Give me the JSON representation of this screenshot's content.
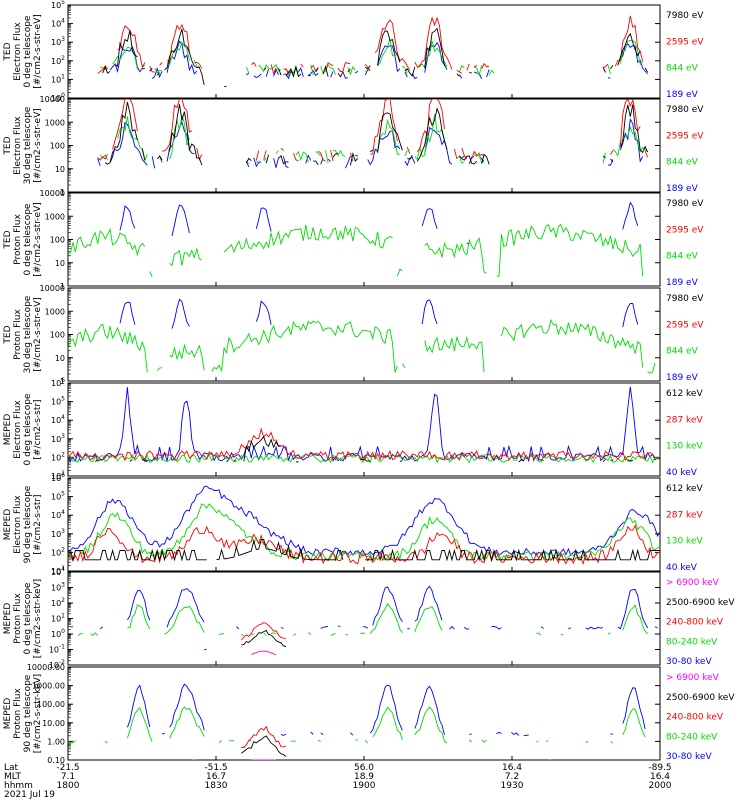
{
  "chart_data": {
    "type": "line",
    "date_label": "2021 Jul 19",
    "x_axis": {
      "row_labels": [
        "Lat",
        "MLT",
        "hhmm"
      ],
      "ticks": [
        {
          "lat": "-21.5",
          "mlt": "7.1",
          "hhmm": "1800"
        },
        {
          "lat": "-51.5",
          "mlt": "16.7",
          "hhmm": "1830"
        },
        {
          "lat": "56.0",
          "mlt": "18.9",
          "hhmm": "1900"
        },
        {
          "lat": "16.4",
          "mlt": "7.2",
          "hhmm": "1930"
        },
        {
          "lat": "-89.5",
          "mlt": "16.4",
          "hhmm": "2000"
        }
      ]
    },
    "colors": {
      "blue": "#0000ff",
      "red": "#ff0000",
      "green": "#00dd00",
      "black": "#000000",
      "magenta": "#ff00ff"
    },
    "panels": [
      {
        "ylabel": [
          "TED",
          "Electron Flux",
          "0 deg telescope",
          "[#/cm2-s-str-eV]"
        ],
        "y_ticks": [
          {
            "v": 0,
            "t": "10^0"
          },
          {
            "v": 1,
            "t": "10^1"
          },
          {
            "v": 2,
            "t": "10^2"
          },
          {
            "v": 3,
            "t": "10^3"
          },
          {
            "v": 4,
            "t": "10^4"
          },
          {
            "v": 5,
            "t": "10^5"
          }
        ],
        "legend": [
          {
            "name": "7980 eV",
            "color": "#000000"
          },
          {
            "name": "2595 eV",
            "color": "#ff0000"
          },
          {
            "name": "844 eV",
            "color": "#00dd00"
          },
          {
            "name": "189 eV",
            "color": "#0000ff"
          }
        ]
      },
      {
        "ylabel": [
          "TED",
          "Electron Flux",
          "30 deg telescope",
          "[#/cm2-s-str-eV]"
        ],
        "y_ticks": [
          {
            "v": 0,
            "t": "1"
          },
          {
            "v": 1,
            "t": "10"
          },
          {
            "v": 2,
            "t": "100"
          },
          {
            "v": 3,
            "t": "1000"
          },
          {
            "v": 4,
            "t": "10000"
          }
        ],
        "legend": [
          {
            "name": "7980 eV",
            "color": "#000000"
          },
          {
            "name": "2595 eV",
            "color": "#ff0000"
          },
          {
            "name": "844 eV",
            "color": "#00dd00"
          },
          {
            "name": "189 eV",
            "color": "#0000ff"
          }
        ]
      },
      {
        "ylabel": [
          "TED",
          "Proton Flux",
          "0 deg telescope",
          "[#/cm2-s-str-eV]"
        ],
        "y_ticks": [
          {
            "v": 0,
            "t": "1"
          },
          {
            "v": 1,
            "t": "10"
          },
          {
            "v": 2,
            "t": "100"
          },
          {
            "v": 3,
            "t": "1000"
          },
          {
            "v": 4,
            "t": "10000"
          }
        ],
        "legend": [
          {
            "name": "7980 eV",
            "color": "#000000"
          },
          {
            "name": "2595 eV",
            "color": "#ff0000"
          },
          {
            "name": "844 eV",
            "color": "#00dd00"
          },
          {
            "name": "189 eV",
            "color": "#0000ff"
          }
        ]
      },
      {
        "ylabel": [
          "TED",
          "Proton Flux",
          "30 deg telescope",
          "[#/cm2-s-str-eV]"
        ],
        "y_ticks": [
          {
            "v": 0,
            "t": "1"
          },
          {
            "v": 1,
            "t": "10"
          },
          {
            "v": 2,
            "t": "100"
          },
          {
            "v": 3,
            "t": "1000"
          },
          {
            "v": 4,
            "t": "10000"
          }
        ],
        "legend": [
          {
            "name": "7980 eV",
            "color": "#000000"
          },
          {
            "name": "2595 eV",
            "color": "#ff0000"
          },
          {
            "name": "844 eV",
            "color": "#00dd00"
          },
          {
            "name": "189 eV",
            "color": "#0000ff"
          }
        ]
      },
      {
        "ylabel": [
          "MEPED",
          "Electron Flux",
          "0 deg telescope",
          "[#/cm2-s-str]"
        ],
        "y_ticks": [
          {
            "v": 1,
            "t": "10^1"
          },
          {
            "v": 2,
            "t": "10^2"
          },
          {
            "v": 3,
            "t": "10^3"
          },
          {
            "v": 4,
            "t": "10^4"
          },
          {
            "v": 5,
            "t": "10^5"
          },
          {
            "v": 6,
            "t": "10^6"
          }
        ],
        "legend": [
          {
            "name": "612 keV",
            "color": "#000000"
          },
          {
            "name": "287 keV",
            "color": "#ff0000"
          },
          {
            "name": "130 keV",
            "color": "#00dd00"
          },
          {
            "name": "40 keV",
            "color": "#0000ff"
          }
        ]
      },
      {
        "ylabel": [
          "MEPED",
          "Electron Flux",
          "90 deg telescope",
          "[#/cm2-s-str]"
        ],
        "y_ticks": [
          {
            "v": 1,
            "t": "10^1"
          },
          {
            "v": 2,
            "t": "10^2"
          },
          {
            "v": 3,
            "t": "10^3"
          },
          {
            "v": 4,
            "t": "10^4"
          },
          {
            "v": 5,
            "t": "10^5"
          },
          {
            "v": 6,
            "t": "10^6"
          }
        ],
        "legend": [
          {
            "name": "612 keV",
            "color": "#000000"
          },
          {
            "name": "287 keV",
            "color": "#ff0000"
          },
          {
            "name": "130 keV",
            "color": "#00dd00"
          },
          {
            "name": "40 keV",
            "color": "#0000ff"
          }
        ]
      },
      {
        "ylabel": [
          "MEPED",
          "Proton Flux",
          "0 deg telescope",
          "[#/cm2-s-str-keV]"
        ],
        "y_ticks": [
          {
            "v": -2,
            "t": "10^-2"
          },
          {
            "v": -1,
            "t": "10^-1"
          },
          {
            "v": 0,
            "t": "10^0"
          },
          {
            "v": 1,
            "t": "10^1"
          },
          {
            "v": 2,
            "t": "10^2"
          },
          {
            "v": 3,
            "t": "10^3"
          },
          {
            "v": 4,
            "t": "10^4"
          }
        ],
        "legend": [
          {
            "name": "> 6900 keV",
            "color": "#ff00ff"
          },
          {
            "name": "2500-6900 keV",
            "color": "#000000"
          },
          {
            "name": "240-800 keV",
            "color": "#ff0000"
          },
          {
            "name": "80-240 keV",
            "color": "#00dd00"
          },
          {
            "name": "30-80 keV",
            "color": "#0000ff"
          }
        ]
      },
      {
        "ylabel": [
          "MEPED",
          "Proton Flux",
          "90 deg telescope",
          "[#/cm2-s-str-keV]"
        ],
        "y_ticks": [
          {
            "v": -1,
            "t": "0.10"
          },
          {
            "v": 0,
            "t": "1.00"
          },
          {
            "v": 1,
            "t": "10.00"
          },
          {
            "v": 2,
            "t": "100.00"
          },
          {
            "v": 3,
            "t": "1000.00"
          },
          {
            "v": 4,
            "t": "10000.00"
          }
        ],
        "legend": [
          {
            "name": "> 6900 keV",
            "color": "#ff00ff"
          },
          {
            "name": "2500-6900 keV",
            "color": "#000000"
          },
          {
            "name": "240-800 keV",
            "color": "#ff0000"
          },
          {
            "name": "80-240 keV",
            "color": "#00dd00"
          },
          {
            "name": "30-80 keV",
            "color": "#0000ff"
          }
        ]
      }
    ]
  }
}
